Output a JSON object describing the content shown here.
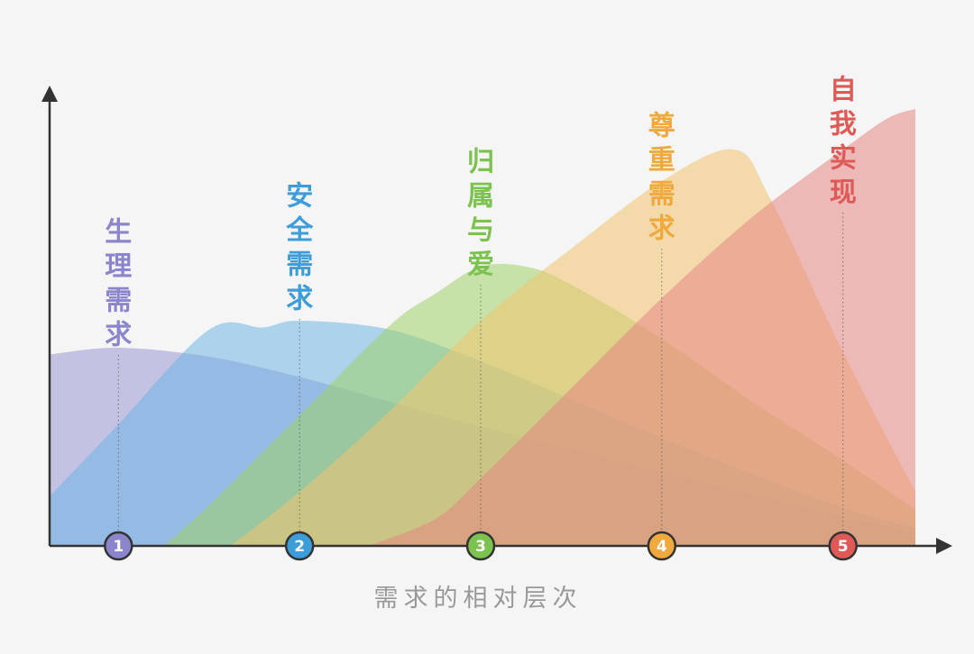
{
  "chart_data": {
    "type": "area",
    "xlabel": "需求的相对层次",
    "ylabel": "",
    "categories": [
      "1",
      "2",
      "3",
      "4",
      "5"
    ],
    "xlim": [
      0.62,
      5.4
    ],
    "ylim": [
      0,
      100
    ],
    "grid": false,
    "series": [
      {
        "name": "生理需求",
        "marker": "1",
        "color": "#9b98d3",
        "x": [
          0.62,
          1.0,
          1.5,
          2.0,
          2.5,
          3.0,
          3.5,
          4.0,
          4.5,
          5.0,
          5.4
        ],
        "y": [
          42.5,
          44,
          42,
          37.5,
          32,
          26.5,
          21.5,
          16.5,
          11.5,
          6.5,
          3
        ]
      },
      {
        "name": "安全需求",
        "marker": "2",
        "color": "#6fb4e3",
        "x": [
          0.62,
          1.0,
          1.5,
          1.8,
          2.0,
          2.5,
          3.0,
          3.5,
          4.0,
          4.5,
          5.0,
          5.4
        ],
        "y": [
          11,
          27,
          48,
          48.5,
          50,
          48,
          41,
          32.5,
          24,
          16,
          8.5,
          4
        ]
      },
      {
        "name": "归属与爱",
        "marker": "3",
        "color": "#9ed16a",
        "x": [
          1.25,
          1.5,
          2.0,
          2.5,
          2.75,
          3.0,
          3.25,
          3.5,
          4.0,
          4.5,
          5.0,
          5.4
        ],
        "y": [
          0,
          9,
          29,
          49,
          56,
          62,
          62,
          58,
          46,
          32,
          19,
          8
        ]
      },
      {
        "name": "尊重需求",
        "marker": "4",
        "color": "#f3c36e",
        "x": [
          1.62,
          2.0,
          2.5,
          3.0,
          3.5,
          4.0,
          4.4,
          4.6,
          5.0,
          5.4
        ],
        "y": [
          0,
          12,
          30,
          50,
          66,
          81,
          88,
          77,
          43,
          12
        ]
      },
      {
        "name": "自我实现",
        "marker": "5",
        "color": "#e68684",
        "x": [
          2.38,
          2.75,
          3.0,
          3.5,
          4.0,
          4.5,
          5.0,
          5.25,
          5.4
        ],
        "y": [
          0,
          6,
          15,
          35,
          55,
          73,
          88,
          95,
          97
        ]
      }
    ]
  },
  "axis_title": "需求的相对层次",
  "labels": {
    "s1": [
      "生",
      "理",
      "需",
      "求"
    ],
    "s2": [
      "安",
      "全",
      "需",
      "求"
    ],
    "s3": [
      "归",
      "属",
      "与",
      "爱"
    ],
    "s4": [
      "尊",
      "重",
      "需",
      "求"
    ],
    "s5": [
      "自",
      "我",
      "实",
      "现"
    ]
  },
  "marker_colors": {
    "1": "#8b86cb",
    "2": "#3d9dd8",
    "3": "#7cc24e",
    "4": "#f0a93c",
    "5": "#df5a57"
  },
  "axis_color": "#333333"
}
